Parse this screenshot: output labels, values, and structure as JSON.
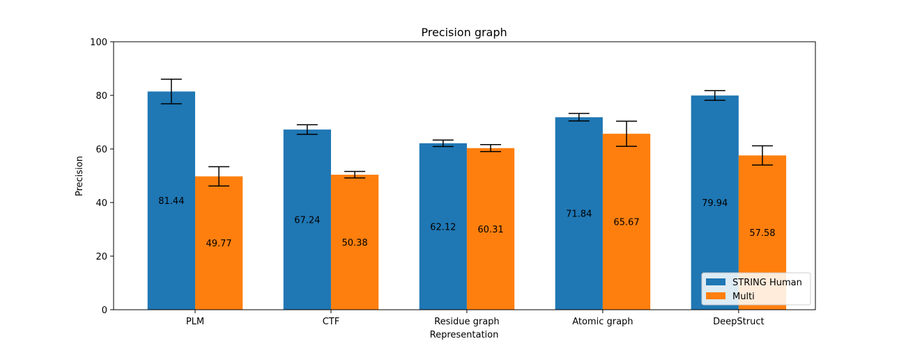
{
  "chart_data": {
    "type": "bar",
    "title": "Precision graph",
    "xlabel": "Representation",
    "ylabel": "Precision",
    "ylim": [
      0,
      100
    ],
    "yticks": [
      0,
      20,
      40,
      60,
      80,
      100
    ],
    "categories": [
      "PLM",
      "CTF",
      "Residue graph",
      "Atomic graph",
      "DeepStruct"
    ],
    "series": [
      {
        "name": "STRING Human",
        "color": "#1f77b4",
        "values": [
          81.44,
          67.24,
          62.12,
          71.84,
          79.94
        ],
        "errors": [
          4.6,
          1.8,
          1.2,
          1.4,
          1.8
        ]
      },
      {
        "name": "Multi",
        "color": "#ff7f0e",
        "values": [
          49.77,
          50.38,
          60.31,
          65.67,
          57.58
        ],
        "errors": [
          3.6,
          1.2,
          1.3,
          4.7,
          3.6
        ]
      }
    ],
    "data_labels": [
      [
        "81.44",
        "67.24",
        "62.12",
        "71.84",
        "79.94"
      ],
      [
        "49.77",
        "50.38",
        "60.31",
        "65.67",
        "57.58"
      ]
    ],
    "legend": {
      "placement": "lower-right"
    },
    "grid": false
  }
}
